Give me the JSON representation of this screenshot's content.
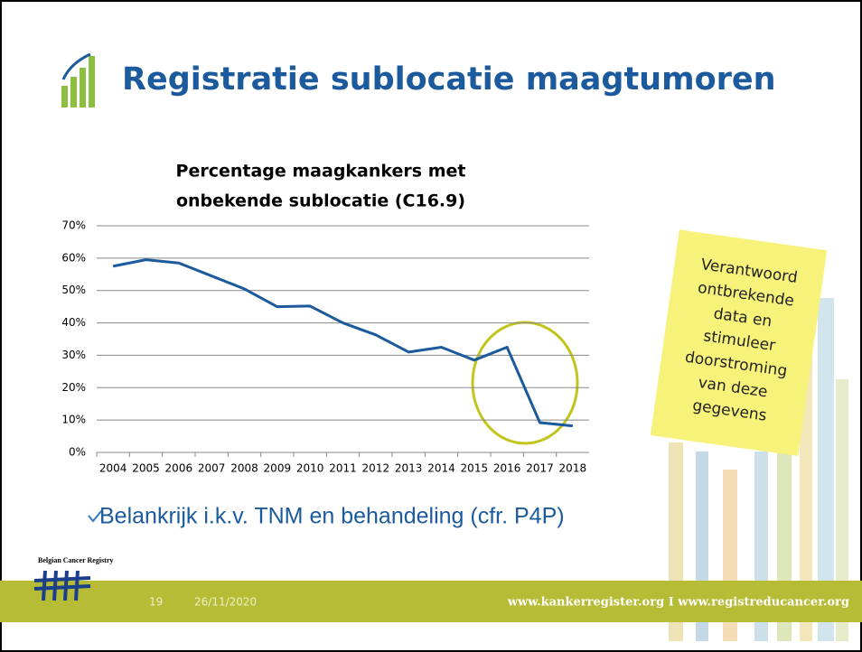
{
  "header": {
    "title": "Registratie sublocatie maagtumoren"
  },
  "chart_data": {
    "type": "line",
    "title_lines": [
      "Percentage maagkankers met",
      "onbekende sublocatie (C16.9)"
    ],
    "categories": [
      "2004",
      "2005",
      "2006",
      "2007",
      "2008",
      "2009",
      "2010",
      "2011",
      "2012",
      "2013",
      "2014",
      "2015",
      "2016",
      "2017",
      "2018"
    ],
    "series": [
      {
        "color": "#1b5a9c",
        "values": [
          57.5,
          59.5,
          58.5,
          54.5,
          50.5,
          45,
          45.2,
          40,
          36.3,
          31,
          32.5,
          28.5,
          32.5,
          9.2,
          8.2
        ]
      }
    ],
    "ylim": [
      0,
      70
    ],
    "yticks": [
      {
        "value": 0,
        "label": "0%"
      },
      {
        "value": 10,
        "label": "10%"
      },
      {
        "value": 20,
        "label": "20%"
      },
      {
        "value": 30,
        "label": "30%"
      },
      {
        "value": 40,
        "label": "40%"
      },
      {
        "value": 50,
        "label": "50%"
      },
      {
        "value": 60,
        "label": "60%"
      },
      {
        "value": 70,
        "label": "70%"
      }
    ],
    "grid": true
  },
  "note": {
    "lines": [
      "Verantwoord",
      "ontbrekende",
      "data en",
      "stimuleer",
      "doorstroming",
      "van deze",
      "gegevens"
    ]
  },
  "bullets": [
    "Belankrijk i.k.v. TNM en behandeling (cfr. P4P)"
  ],
  "logo": {
    "text": "Belgian Cancer Registry"
  },
  "footer": {
    "page": "19",
    "date": "26/11/2020",
    "links": "www.kankerregister.org I www.registreducancer.org"
  }
}
